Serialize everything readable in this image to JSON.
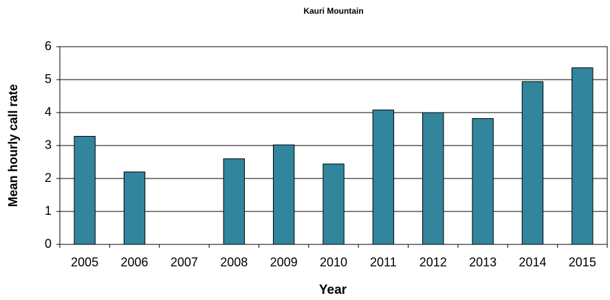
{
  "chart_data": {
    "type": "bar",
    "title": "Kauri Mountain",
    "x_label": "Year",
    "y_label": "Mean hourly call rate",
    "categories": [
      "2005",
      "2006",
      "2007",
      "2008",
      "2009",
      "2010",
      "2011",
      "2012",
      "2013",
      "2014",
      "2015"
    ],
    "values": [
      3.28,
      2.2,
      null,
      2.6,
      3.02,
      2.44,
      4.08,
      4.0,
      3.82,
      4.94,
      5.36
    ],
    "color": "#31859c",
    "ylim": [
      0,
      6
    ],
    "yticks": [
      0,
      1,
      2,
      3,
      4,
      5,
      6
    ],
    "grid": true
  }
}
